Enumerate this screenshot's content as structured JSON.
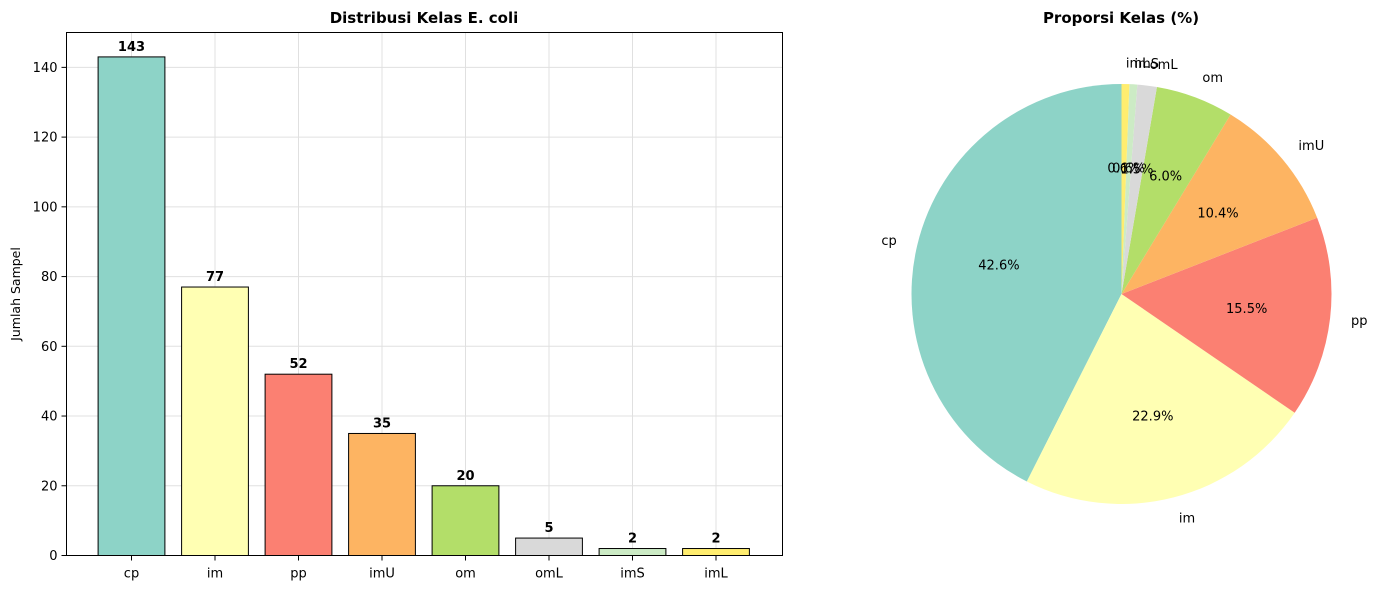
{
  "chart_data": [
    {
      "type": "bar",
      "title": "Distribusi Kelas E. coli",
      "xlabel": "",
      "ylabel": "Jumlah Sampel",
      "categories": [
        "cp",
        "im",
        "pp",
        "imU",
        "om",
        "omL",
        "imS",
        "imL"
      ],
      "values": [
        143,
        77,
        52,
        35,
        20,
        5,
        2,
        2
      ],
      "colors": [
        "#8dd3c7",
        "#ffffb3",
        "#fb8072",
        "#fdb462",
        "#b3de69",
        "#d9d9d9",
        "#ccebc5",
        "#ffed6f"
      ],
      "ylim": [
        0,
        150
      ],
      "yticks": [
        0,
        20,
        40,
        60,
        80,
        100,
        120,
        140
      ],
      "grid": true
    },
    {
      "type": "pie",
      "title": "Proporsi Kelas (%)",
      "categories": [
        "cp",
        "im",
        "pp",
        "imU",
        "om",
        "omL",
        "imS",
        "imL"
      ],
      "values": [
        42.6,
        22.9,
        15.5,
        10.4,
        6.0,
        1.5,
        0.6,
        0.6
      ],
      "pct_labels": [
        "42.6%",
        "22.9%",
        "15.5%",
        "10.4%",
        "6.0%",
        "1.5%",
        "0.6%",
        "0.6%"
      ],
      "colors": [
        "#8dd3c7",
        "#ffffb3",
        "#fb8072",
        "#fdb462",
        "#b3de69",
        "#d9d9d9",
        "#ccebc5",
        "#ffed6f"
      ],
      "start_angle_deg": 90,
      "direction": "counterclockwise"
    }
  ]
}
